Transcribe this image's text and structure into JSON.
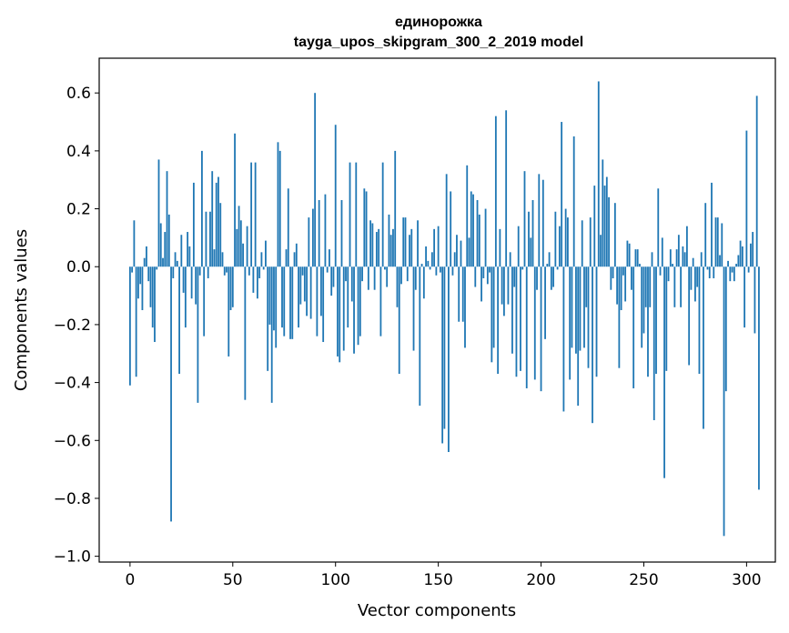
{
  "chart_data": {
    "type": "bar",
    "title": "единорожка",
    "subtitle": "tayga_upos_skipgram_300_2_2019 model",
    "xlabel": "Vector components",
    "ylabel": "Components values",
    "xlim": [
      -15,
      314
    ],
    "ylim": [
      -1.02,
      0.72
    ],
    "x_ticks": [
      0,
      50,
      100,
      150,
      200,
      250,
      300
    ],
    "x_tick_labels": [
      "0",
      "50",
      "100",
      "150",
      "200",
      "250",
      "300"
    ],
    "y_ticks": [
      -1.0,
      -0.8,
      -0.6,
      -0.4,
      -0.2,
      0.0,
      0.2,
      0.4,
      0.6
    ],
    "y_tick_labels": [
      "−1.0",
      "−0.8",
      "−0.6",
      "−0.4",
      "−0.2",
      "0.0",
      "0.2",
      "0.4",
      "0.6"
    ],
    "bar_color": "#1f77b4",
    "grid": false,
    "values": [
      -0.41,
      -0.02,
      0.16,
      -0.38,
      -0.11,
      -0.06,
      -0.15,
      0.03,
      0.07,
      -0.05,
      -0.14,
      -0.21,
      -0.26,
      -0.01,
      0.37,
      0.15,
      0.03,
      0.12,
      0.33,
      0.18,
      -0.88,
      -0.04,
      0.05,
      0.02,
      -0.37,
      0.11,
      -0.09,
      -0.21,
      0.12,
      0.07,
      -0.11,
      0.29,
      -0.13,
      -0.47,
      -0.03,
      0.4,
      -0.24,
      0.19,
      -0.04,
      0.19,
      0.33,
      0.06,
      0.29,
      0.31,
      0.22,
      0.05,
      -0.03,
      -0.02,
      -0.31,
      -0.15,
      -0.14,
      0.46,
      0.13,
      0.21,
      0.16,
      0.08,
      -0.46,
      0.14,
      -0.03,
      0.36,
      -0.09,
      0.36,
      -0.11,
      -0.04,
      0.05,
      -0.01,
      0.09,
      -0.36,
      -0.2,
      -0.47,
      -0.22,
      -0.28,
      0.43,
      0.4,
      -0.21,
      -0.24,
      0.06,
      0.27,
      -0.25,
      -0.25,
      0.05,
      0.08,
      -0.21,
      -0.13,
      -0.03,
      -0.12,
      -0.17,
      0.17,
      -0.18,
      0.2,
      0.6,
      -0.24,
      0.23,
      -0.17,
      -0.26,
      0.25,
      -0.02,
      0.06,
      -0.1,
      -0.07,
      0.49,
      -0.31,
      -0.33,
      0.23,
      -0.29,
      -0.05,
      -0.21,
      0.36,
      -0.12,
      -0.3,
      0.36,
      -0.27,
      -0.24,
      -0.05,
      0.27,
      0.26,
      -0.08,
      0.16,
      0.15,
      -0.08,
      0.12,
      0.13,
      -0.24,
      0.36,
      -0.01,
      -0.07,
      0.18,
      0.11,
      0.13,
      0.4,
      -0.14,
      -0.37,
      -0.06,
      0.17,
      0.17,
      -0.05,
      0.11,
      0.13,
      -0.29,
      -0.08,
      0.16,
      -0.48,
      0.01,
      -0.11,
      0.07,
      0.02,
      -0.01,
      0.05,
      0.13,
      -0.03,
      0.14,
      -0.02,
      -0.61,
      -0.56,
      0.32,
      -0.64,
      0.26,
      -0.03,
      0.05,
      0.11,
      -0.19,
      0.09,
      -0.19,
      -0.28,
      0.35,
      0.1,
      0.26,
      0.25,
      -0.07,
      0.23,
      0.18,
      -0.12,
      -0.04,
      0.2,
      -0.06,
      -0.02,
      -0.33,
      -0.28,
      0.52,
      -0.37,
      0.13,
      -0.13,
      -0.17,
      0.54,
      -0.13,
      0.05,
      -0.3,
      -0.07,
      -0.38,
      0.14,
      -0.36,
      -0.01,
      0.33,
      -0.42,
      0.19,
      0.1,
      0.23,
      -0.39,
      -0.08,
      0.32,
      -0.43,
      0.3,
      -0.25,
      0.01,
      0.05,
      -0.08,
      -0.07,
      0.19,
      -0.01,
      0.14,
      0.5,
      -0.5,
      0.2,
      0.17,
      -0.39,
      -0.28,
      0.45,
      -0.3,
      -0.48,
      -0.29,
      0.16,
      -0.28,
      -0.14,
      -0.35,
      0.17,
      -0.54,
      0.28,
      -0.38,
      0.64,
      0.11,
      0.37,
      0.28,
      0.31,
      0.24,
      -0.08,
      -0.04,
      0.22,
      -0.13,
      -0.35,
      -0.15,
      -0.03,
      -0.12,
      0.09,
      0.08,
      -0.08,
      -0.42,
      0.06,
      0.06,
      0.01,
      -0.28,
      -0.23,
      -0.14,
      -0.38,
      -0.14,
      0.05,
      -0.53,
      -0.37,
      0.27,
      -0.03,
      0.1,
      -0.73,
      -0.36,
      -0.05,
      0.06,
      0.01,
      -0.14,
      0.06,
      0.11,
      -0.14,
      0.07,
      0.05,
      0.14,
      -0.34,
      -0.08,
      0.03,
      -0.12,
      -0.07,
      -0.37,
      0.05,
      -0.56,
      0.22,
      -0.01,
      -0.04,
      0.29,
      -0.04,
      0.17,
      0.17,
      0.04,
      0.15,
      -0.93,
      -0.43,
      0.02,
      -0.05,
      -0.02,
      -0.05,
      0.01,
      0.04,
      0.09,
      0.07,
      -0.21,
      0.47,
      -0.02,
      0.08,
      0.12,
      -0.23,
      0.59,
      -0.77
    ]
  }
}
